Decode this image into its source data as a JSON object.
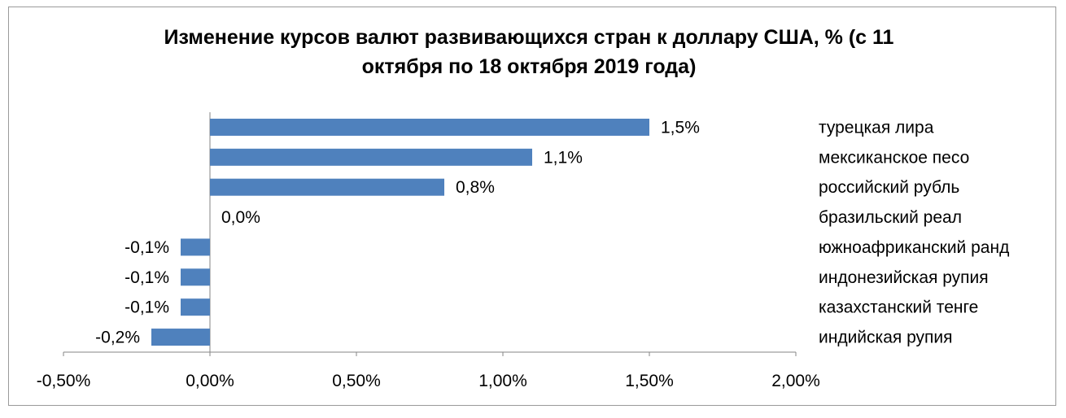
{
  "chart_data": {
    "type": "bar",
    "orientation": "horizontal",
    "title": "Изменение курсов валют развивающихся стран к доллару США, % (с 11\nоктября по 18 октября 2019 года)",
    "categories": [
      "турецкая лира",
      "мексиканское песо",
      "российский рубль",
      "бразильский реал",
      "южноафриканский ранд",
      "индонезийская рупия",
      "казахстанский тенге",
      "индийская рупия"
    ],
    "values": [
      1.5,
      1.1,
      0.8,
      0.0,
      -0.1,
      -0.1,
      -0.1,
      -0.2
    ],
    "value_labels": [
      "1,5%",
      "1,1%",
      "0,8%",
      "0,0%",
      "-0,1%",
      "-0,1%",
      "-0,1%",
      "-0,2%"
    ],
    "xlim": [
      -0.5,
      2.0
    ],
    "x_ticks": [
      -0.5,
      0,
      0.5,
      1.0,
      1.5,
      2.0
    ],
    "x_tick_labels": [
      "-0,50%",
      "0,00%",
      "0,50%",
      "1,00%",
      "1,50%",
      "2,00%"
    ],
    "grid": false,
    "legend": "none",
    "bar_color": "#4f81bd"
  }
}
